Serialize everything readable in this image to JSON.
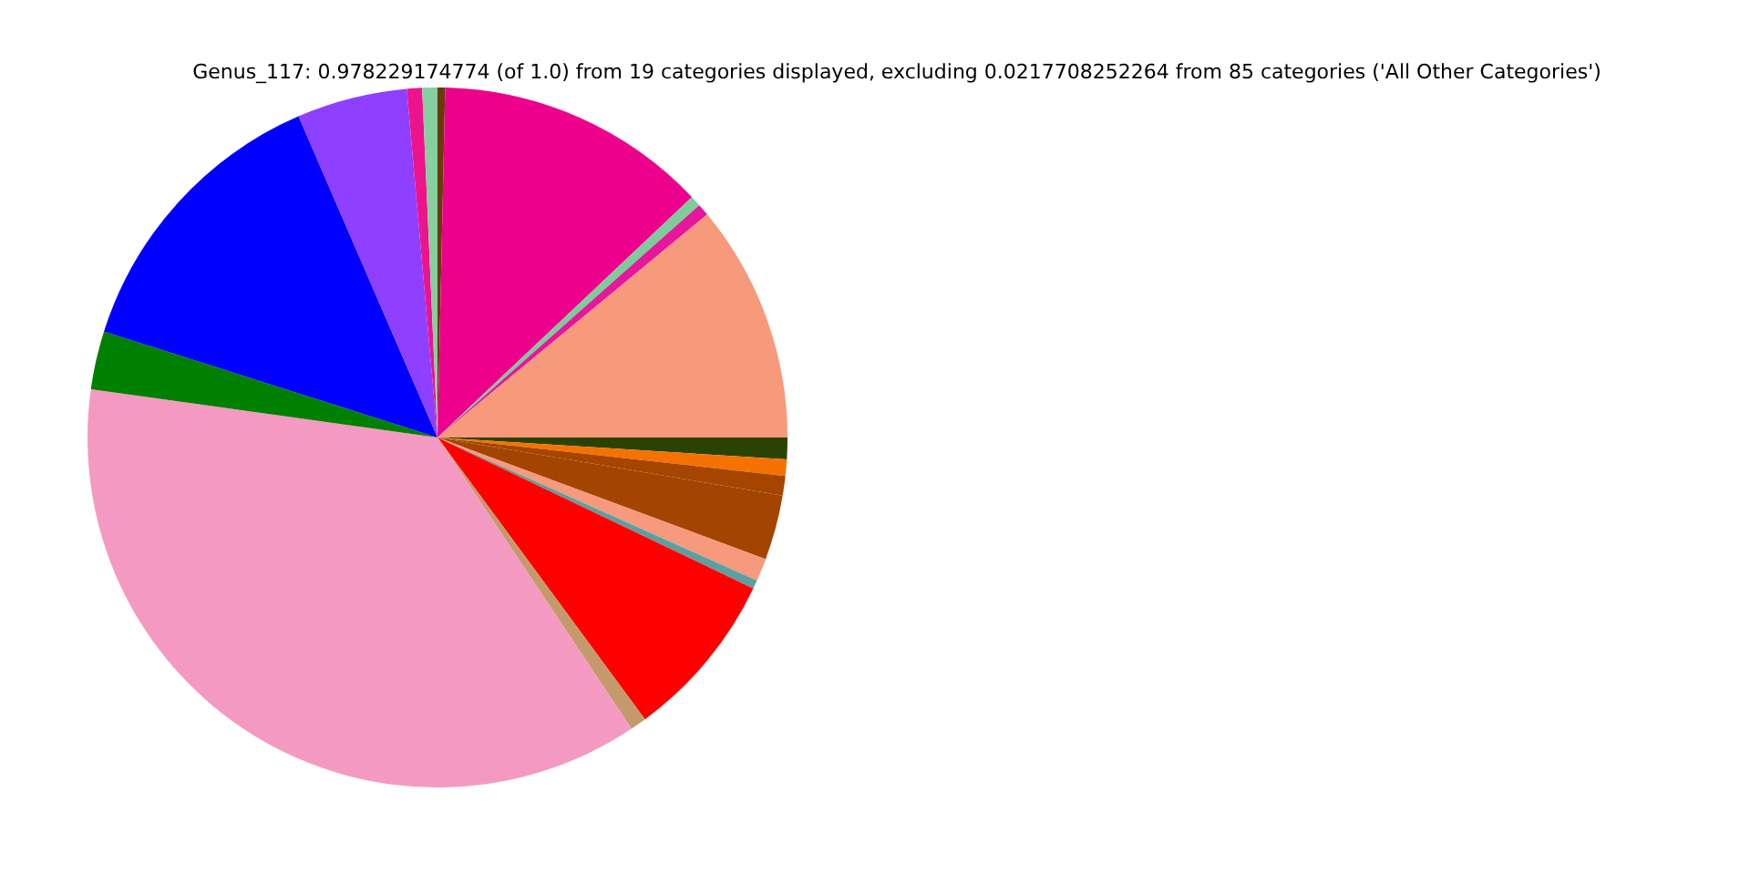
{
  "chart_data": {
    "type": "pie",
    "title": "Genus_117: 0.978229174774 (of 1.0) from 19 categories displayed, excluding 0.0217708252264 from 85 categories ('All Other Categories')",
    "categories": [
      null,
      null,
      null,
      null,
      null,
      null,
      null,
      null,
      null,
      null,
      null,
      null,
      null,
      null,
      null,
      null,
      null,
      null,
      null
    ],
    "values": [
      0.35,
      12.6,
      0.5,
      0.55,
      11.0,
      1.0,
      0.75,
      0.9,
      3.0,
      1.05,
      0.4,
      7.8,
      0.75,
      36.55,
      2.7,
      13.6,
      5.1,
      0.7,
      0.7
    ],
    "colors": [
      "#6b3a0c",
      "#ec008c",
      "#7dcc9a",
      "#e5179a",
      "#f7997b",
      "#2a4304",
      "#f57200",
      "#a54500",
      "#a34500",
      "#f6997c",
      "#5c9fa0",
      "#ff0000",
      "#c49a6c",
      "#f49ac2",
      "#008000",
      "#0000ff",
      "#8f3fff",
      "#ec148c",
      "#86d0a0"
    ],
    "legend": false
  }
}
